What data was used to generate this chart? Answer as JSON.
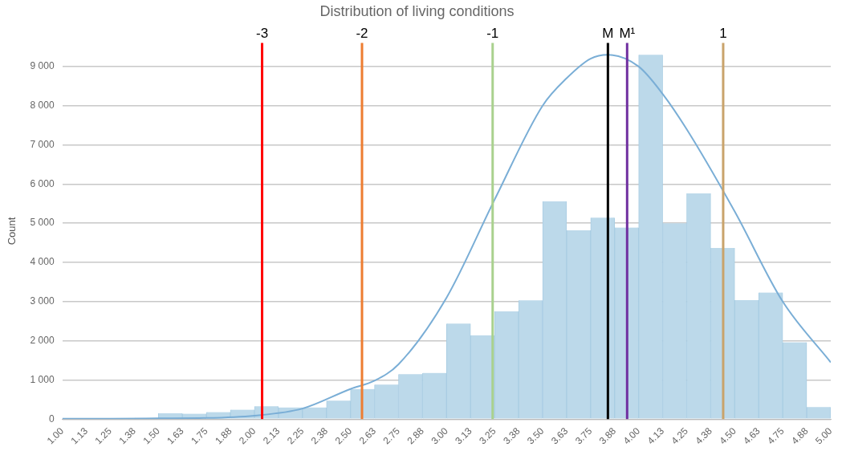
{
  "chart_data": {
    "type": "histogram",
    "title": "Distribution of living conditions",
    "ylabel": "Count",
    "bins": [
      1,
      1.125,
      1.25,
      1.375,
      1.5,
      1.625,
      1.75,
      1.875,
      2,
      2.125,
      2.25,
      2.375,
      2.5,
      2.625,
      2.75,
      2.875,
      3,
      3.125,
      3.25,
      3.375,
      3.5,
      3.625,
      3.75,
      3.875,
      4,
      4.125,
      4.25,
      4.375,
      4.5,
      4.625,
      4.75,
      4.875,
      5
    ],
    "values": [
      10,
      10,
      20,
      30,
      150,
      140,
      180,
      240,
      330,
      300,
      300,
      470,
      770,
      880,
      1150,
      1180,
      2440,
      2140,
      2750,
      3030,
      5560,
      4820,
      5140,
      4890,
      9300,
      5000,
      5760,
      4370,
      3040,
      3230,
      1960,
      310
    ],
    "color": "#bcd9ea",
    "series": [
      {
        "type": "line",
        "color": "#7aaed6",
        "x": [
          1,
          1.25,
          1.5,
          1.75,
          2,
          2.25,
          2.5,
          2.625,
          2.75,
          3,
          3.25,
          3.5,
          3.625,
          3.75,
          3.84,
          4,
          4.125,
          4.25,
          4.5,
          4.75,
          5
        ],
        "values": [
          10,
          10,
          20,
          30,
          90,
          270,
          770,
          980,
          1400,
          3100,
          5600,
          8000,
          8700,
          9200,
          9300,
          9000,
          8300,
          7400,
          5300,
          3000,
          1450
        ]
      }
    ],
    "ref_lines": [
      {
        "axis": "x",
        "value": 2.04,
        "color": "#ff0000"
      },
      {
        "axis": "x",
        "value": 2.56,
        "color": "#ed7d31"
      },
      {
        "axis": "x",
        "value": 3.24,
        "color": "#a9d18e"
      },
      {
        "axis": "x",
        "value": 3.84,
        "label": "M",
        "color": "#000000"
      },
      {
        "axis": "x",
        "value": 3.94,
        "label": "M¹",
        "color": "#7030a0"
      },
      {
        "axis": "x",
        "value": 4.44,
        "color": "#c9a36b"
      }
    ],
    "annotations": [
      {
        "text": "-3",
        "x": 2.04,
        "y": 9600
      },
      {
        "text": "-2",
        "x": 2.56,
        "y": 9600
      },
      {
        "text": "-1",
        "x": 3.24,
        "y": 9600
      },
      {
        "text": "1",
        "x": 4.44,
        "y": 9600
      }
    ],
    "xlim": [
      1,
      5
    ],
    "xticks": [
      {
        "value": 1,
        "label": "1.00"
      },
      {
        "value": 1.125,
        "label": "1.13"
      },
      {
        "value": 1.25,
        "label": "1.25"
      },
      {
        "value": 1.375,
        "label": "1.38"
      },
      {
        "value": 1.5,
        "label": "1.50"
      },
      {
        "value": 1.625,
        "label": "1.63"
      },
      {
        "value": 1.75,
        "label": "1.75"
      },
      {
        "value": 1.875,
        "label": "1.88"
      },
      {
        "value": 2,
        "label": "2.00"
      },
      {
        "value": 2.125,
        "label": "2.13"
      },
      {
        "value": 2.25,
        "label": "2.25"
      },
      {
        "value": 2.375,
        "label": "2.38"
      },
      {
        "value": 2.5,
        "label": "2.50"
      },
      {
        "value": 2.625,
        "label": "2.63"
      },
      {
        "value": 2.75,
        "label": "2.75"
      },
      {
        "value": 2.875,
        "label": "2.88"
      },
      {
        "value": 3,
        "label": "3.00"
      },
      {
        "value": 3.125,
        "label": "3.13"
      },
      {
        "value": 3.25,
        "label": "3.25"
      },
      {
        "value": 3.375,
        "label": "3.38"
      },
      {
        "value": 3.5,
        "label": "3.50"
      },
      {
        "value": 3.625,
        "label": "3.63"
      },
      {
        "value": 3.75,
        "label": "3.75"
      },
      {
        "value": 3.875,
        "label": "3.88"
      },
      {
        "value": 4,
        "label": "4.00"
      },
      {
        "value": 4.125,
        "label": "4.13"
      },
      {
        "value": 4.25,
        "label": "4.25"
      },
      {
        "value": 4.375,
        "label": "4.38"
      },
      {
        "value": 4.5,
        "label": "4.50"
      },
      {
        "value": 4.625,
        "label": "4.63"
      },
      {
        "value": 4.75,
        "label": "4.75"
      },
      {
        "value": 4.875,
        "label": "4.88"
      },
      {
        "value": 5,
        "label": "5.00"
      }
    ],
    "ylim": [
      0,
      9600
    ],
    "yticks": [
      {
        "value": 0,
        "label": "0"
      },
      {
        "value": 1000,
        "label": "1 000"
      },
      {
        "value": 2000,
        "label": "2 000"
      },
      {
        "value": 3000,
        "label": "3 000"
      },
      {
        "value": 4000,
        "label": "4 000"
      },
      {
        "value": 5000,
        "label": "5 000"
      },
      {
        "value": 6000,
        "label": "6 000"
      },
      {
        "value": 7000,
        "label": "7 000"
      },
      {
        "value": 8000,
        "label": "8 000"
      },
      {
        "value": 9000,
        "label": "9 000"
      }
    ],
    "grid": "y",
    "legend": false,
    "marker": "none",
    "line_style": "solid"
  }
}
